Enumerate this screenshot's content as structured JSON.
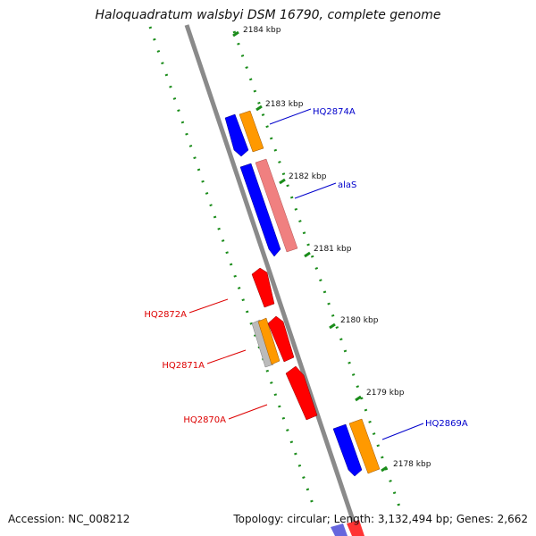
{
  "title": "Haloquadratum walsbyi DSM 16790, complete genome",
  "footer": {
    "accession": "Accession: NC_008212",
    "summary": "Topology: circular; Length: 3,132,494 bp; Genes: 2,662"
  },
  "ticks": [
    "2184 kbp",
    "2183 kbp",
    "2182 kbp",
    "2181 kbp",
    "2180 kbp",
    "2179 kbp",
    "2178 kbp"
  ],
  "gene_labels": [
    {
      "text": "HQ2874A",
      "color": "#0000cc"
    },
    {
      "text": "alaS",
      "color": "#0000cc"
    },
    {
      "text": "HQ2872A",
      "color": "#dd0000"
    },
    {
      "text": "HQ2871A",
      "color": "#dd0000"
    },
    {
      "text": "HQ2870A",
      "color": "#dd0000"
    },
    {
      "text": "HQ2869A",
      "color": "#0000cc"
    }
  ],
  "colors": {
    "backbone": "#888888",
    "tick": "#1a8c1a",
    "cds_forward": "#0000ff",
    "cds_reverse": "#ff0000",
    "gene": "#ff9900",
    "rrna": "#f08080",
    "pseudo": "#bbbbbb"
  }
}
